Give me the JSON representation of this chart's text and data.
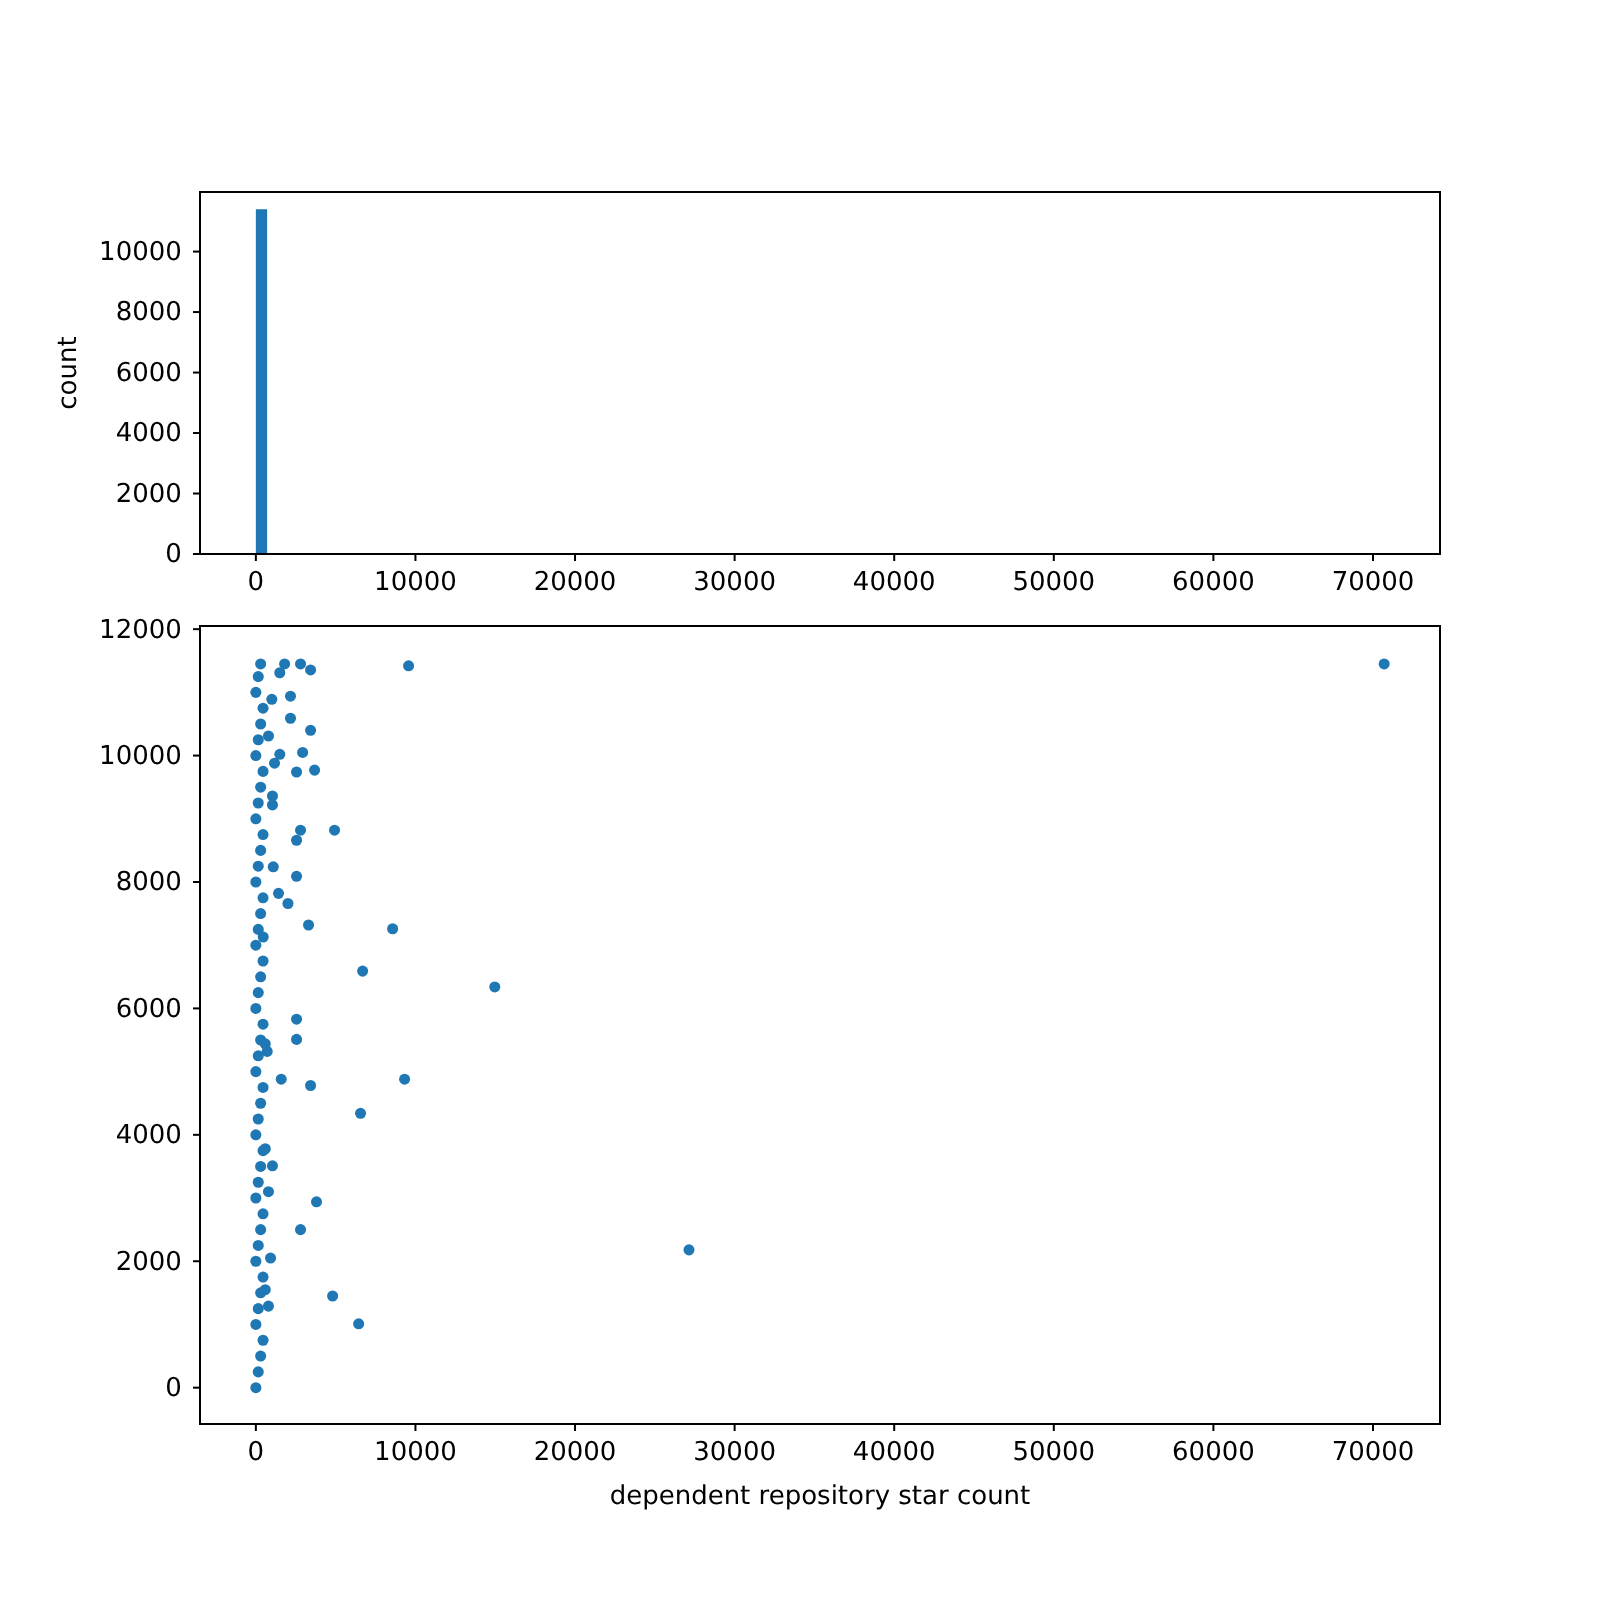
{
  "chart_data": [
    {
      "type": "histogram",
      "ylabel": "count",
      "bins": [
        0,
        707
      ],
      "values": [
        11400
      ],
      "color": "#1f77b4",
      "xlim": [
        -3500,
        74200
      ],
      "xticks": [
        0,
        10000,
        20000,
        30000,
        40000,
        50000,
        60000,
        70000
      ],
      "ylim": [
        0,
        11970
      ],
      "yticks": [
        0,
        2000,
        4000,
        6000,
        8000,
        10000
      ]
    },
    {
      "type": "scatter",
      "xlabel": "dependent repository star count",
      "color": "#1f77b4",
      "marker": "circle",
      "xlim": [
        -3500,
        74200
      ],
      "xticks": [
        0,
        10000,
        20000,
        30000,
        40000,
        50000,
        60000,
        70000
      ],
      "ylim": [
        -575,
        12050
      ],
      "yticks": [
        0,
        2000,
        4000,
        6000,
        8000,
        10000,
        12000
      ],
      "x": [
        0,
        150,
        300,
        450,
        0,
        150,
        300,
        450,
        0,
        150,
        300,
        450,
        0,
        150,
        300,
        450,
        0,
        150,
        300,
        450,
        0,
        150,
        300,
        450,
        0,
        150,
        300,
        450,
        0,
        150,
        300,
        450,
        0,
        150,
        300,
        450,
        0,
        150,
        300,
        450,
        0,
        150,
        300,
        450,
        0,
        150,
        300,
        1800,
        2800,
        3430,
        1500,
        9570,
        70700,
        2170,
        2170,
        3430,
        1500,
        2930,
        2550,
        3680,
        2800,
        4930,
        2550,
        2550,
        2010,
        3300,
        8570,
        6690,
        14970,
        2550,
        2550,
        1590,
        3430,
        9320,
        6560,
        3800,
        2800,
        27140,
        4810,
        6440,
        1000,
        790,
        1170,
        1040,
        1040,
        1090,
        1420,
        460,
        710,
        1040,
        790,
        920,
        790,
        590,
        590,
        590
      ],
      "values": [
        0,
        250,
        500,
        750,
        1000,
        1250,
        1500,
        1750,
        2000,
        2250,
        2500,
        2750,
        3000,
        3250,
        3500,
        3750,
        4000,
        4250,
        4500,
        4750,
        5000,
        5250,
        5500,
        5750,
        6000,
        6250,
        6500,
        6750,
        7000,
        7250,
        7500,
        7750,
        8000,
        8250,
        8500,
        8750,
        9000,
        9250,
        9500,
        9750,
        10000,
        10250,
        10500,
        10750,
        11000,
        11250,
        11450,
        11450,
        11450,
        11355,
        11310,
        11420,
        11450,
        10940,
        10590,
        10400,
        10020,
        10050,
        9740,
        9770,
        8820,
        8820,
        8660,
        8090,
        7660,
        7320,
        7260,
        6590,
        6340,
        5830,
        5510,
        4880,
        4780,
        4880,
        4340,
        2940,
        2500,
        2180,
        1450,
        1010,
        10890,
        10310,
        9880,
        9360,
        9220,
        8240,
        7820,
        7130,
        5320,
        3510,
        3100,
        2050,
        1290,
        1550,
        3780,
        5440
      ]
    }
  ]
}
